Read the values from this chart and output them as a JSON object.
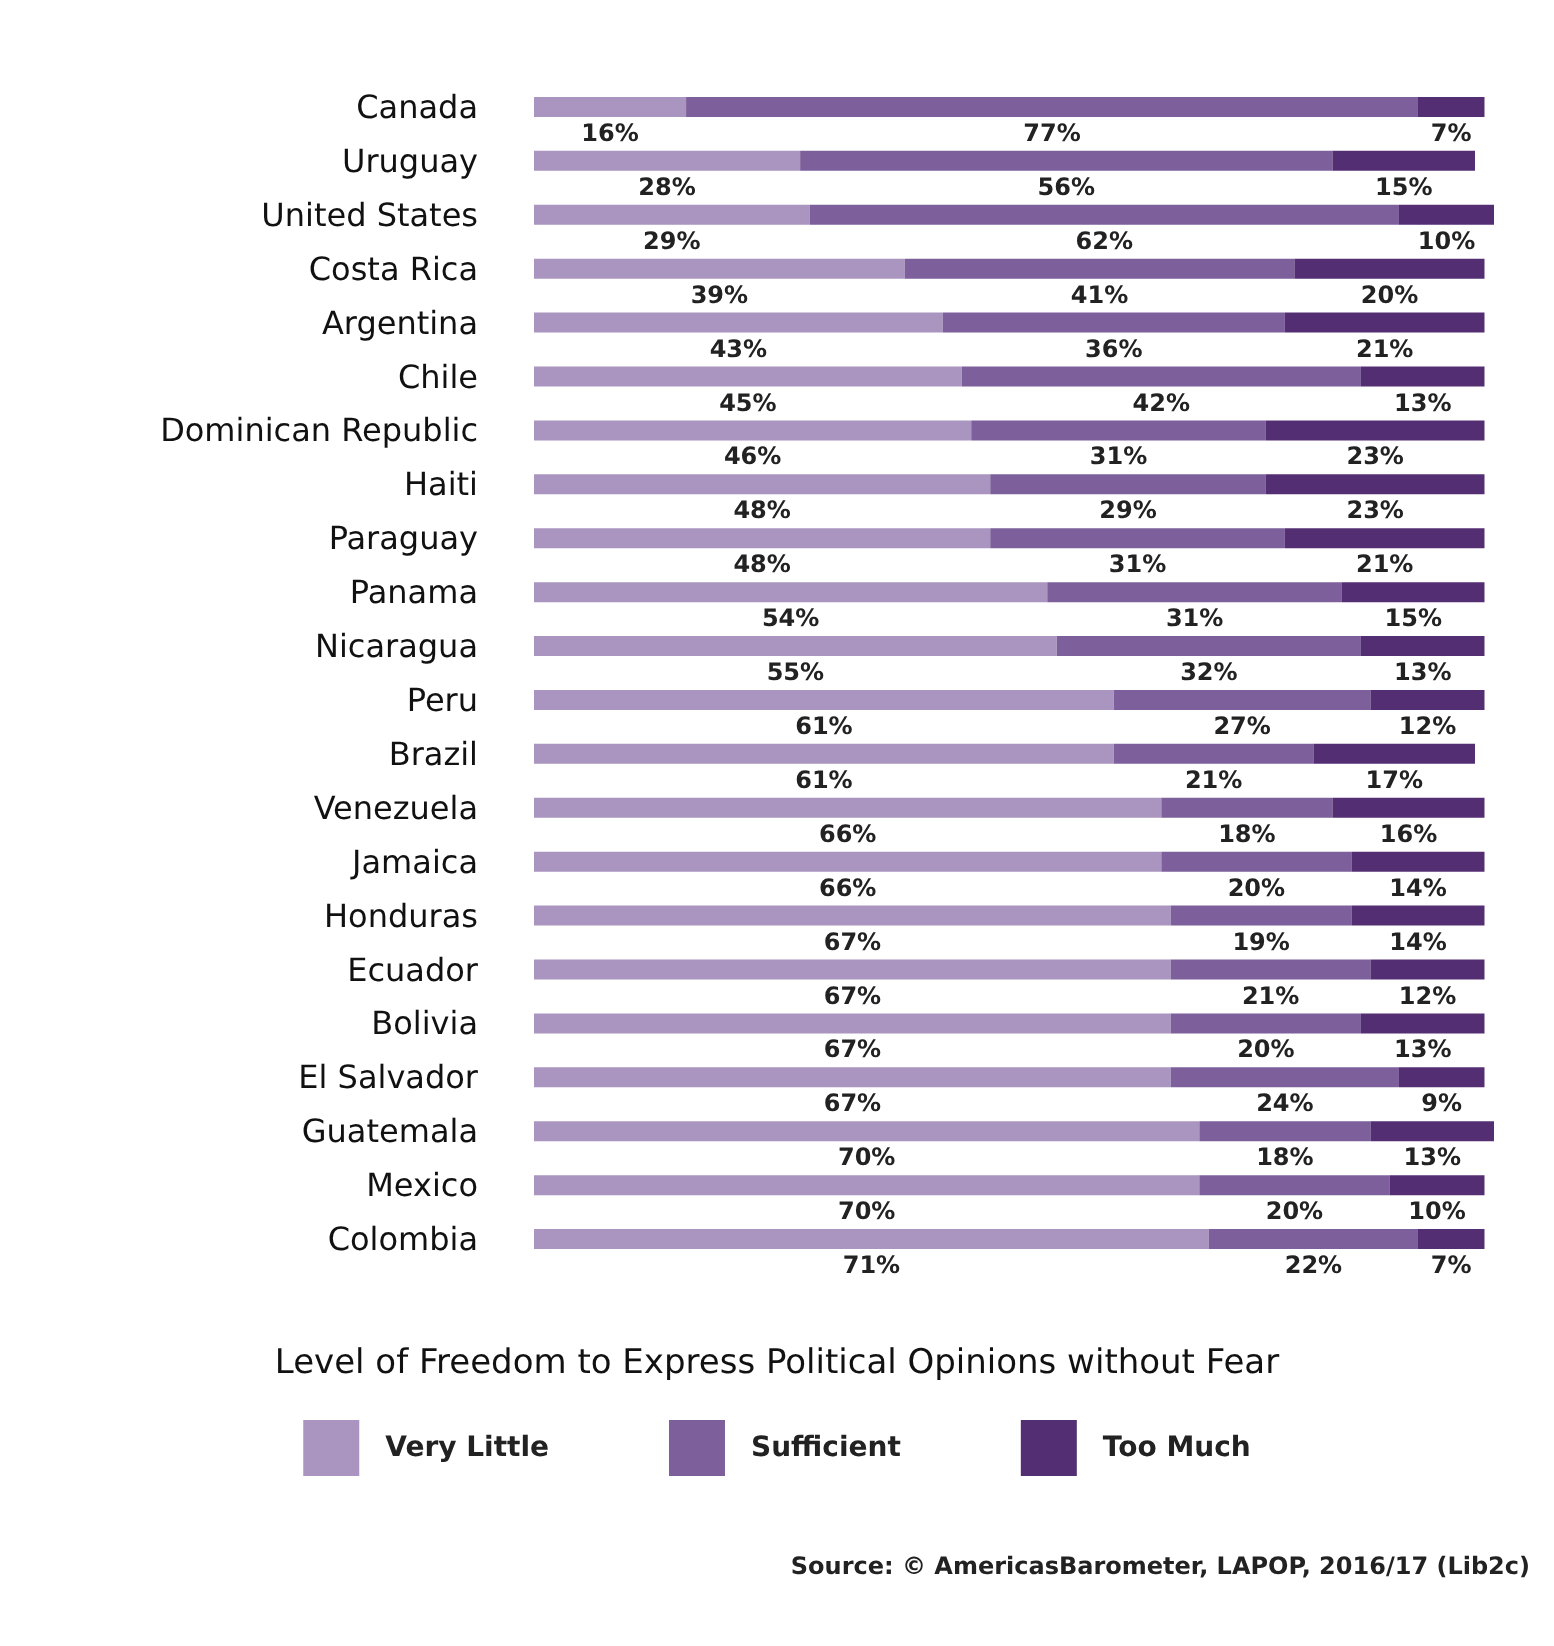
{
  "chart_data": {
    "type": "bar",
    "orientation": "horizontal",
    "stacked": true,
    "legend": "bottom",
    "grid": false,
    "title": "Level of Freedom to Express Political Opinions without Fear",
    "annotations": [
      "Source: © AmericasBarometer, LAPOP, 2016/17 (Lib2c)"
    ],
    "categories": [
      "Canada",
      "Uruguay",
      "United States",
      "Costa Rica",
      "Argentina",
      "Chile",
      "Dominican Republic",
      "Haiti",
      "Paraguay",
      "Panama",
      "Nicaragua",
      "Peru",
      "Brazil",
      "Venezuela",
      "Jamaica",
      "Honduras",
      "Ecuador",
      "Bolivia",
      "El Salvador",
      "Guatemala",
      "Mexico",
      "Colombia"
    ],
    "series": [
      {
        "name": "Very Little",
        "color": "#a995bf",
        "values": [
          16,
          28,
          29,
          39,
          43,
          45,
          46,
          48,
          48,
          54,
          55,
          61,
          61,
          66,
          66,
          67,
          67,
          67,
          67,
          70,
          70,
          71
        ],
        "value_labels": [
          "16%",
          "28%",
          "29%",
          "39%",
          "43%",
          "45%",
          "46%",
          "48%",
          "48%",
          "54%",
          "55%",
          "61%",
          "61%",
          "66%",
          "66%",
          "67%",
          "67%",
          "67%",
          "67%",
          "70%",
          "70%",
          "71%"
        ]
      },
      {
        "name": "Sufficient",
        "color": "#7d5f9b",
        "values": [
          77,
          56,
          62,
          41,
          36,
          42,
          31,
          29,
          31,
          31,
          32,
          27,
          21,
          18,
          20,
          19,
          21,
          20,
          24,
          18,
          20,
          22
        ],
        "value_labels": [
          "77%",
          "56%",
          "62%",
          "41%",
          "36%",
          "42%",
          "31%",
          "29%",
          "31%",
          "31%",
          "32%",
          "27%",
          "21%",
          "18%",
          "20%",
          "19%",
          "21%",
          "20%",
          "24%",
          "18%",
          "20%",
          "22%"
        ]
      },
      {
        "name": "Too Much",
        "color": "#542e73",
        "values": [
          7,
          15,
          10,
          20,
          21,
          13,
          23,
          23,
          21,
          15,
          13,
          12,
          17,
          16,
          14,
          14,
          12,
          13,
          9,
          13,
          10,
          7
        ],
        "value_labels": [
          "7%",
          "15%",
          "10%",
          "20%",
          "21%",
          "13%",
          "23%",
          "23%",
          "21%",
          "15%",
          "13%",
          "12%",
          "17%",
          "16%",
          "14%",
          "14%",
          "12%",
          "13%",
          "9%",
          "13%",
          "10%",
          "7%"
        ]
      }
    ]
  }
}
